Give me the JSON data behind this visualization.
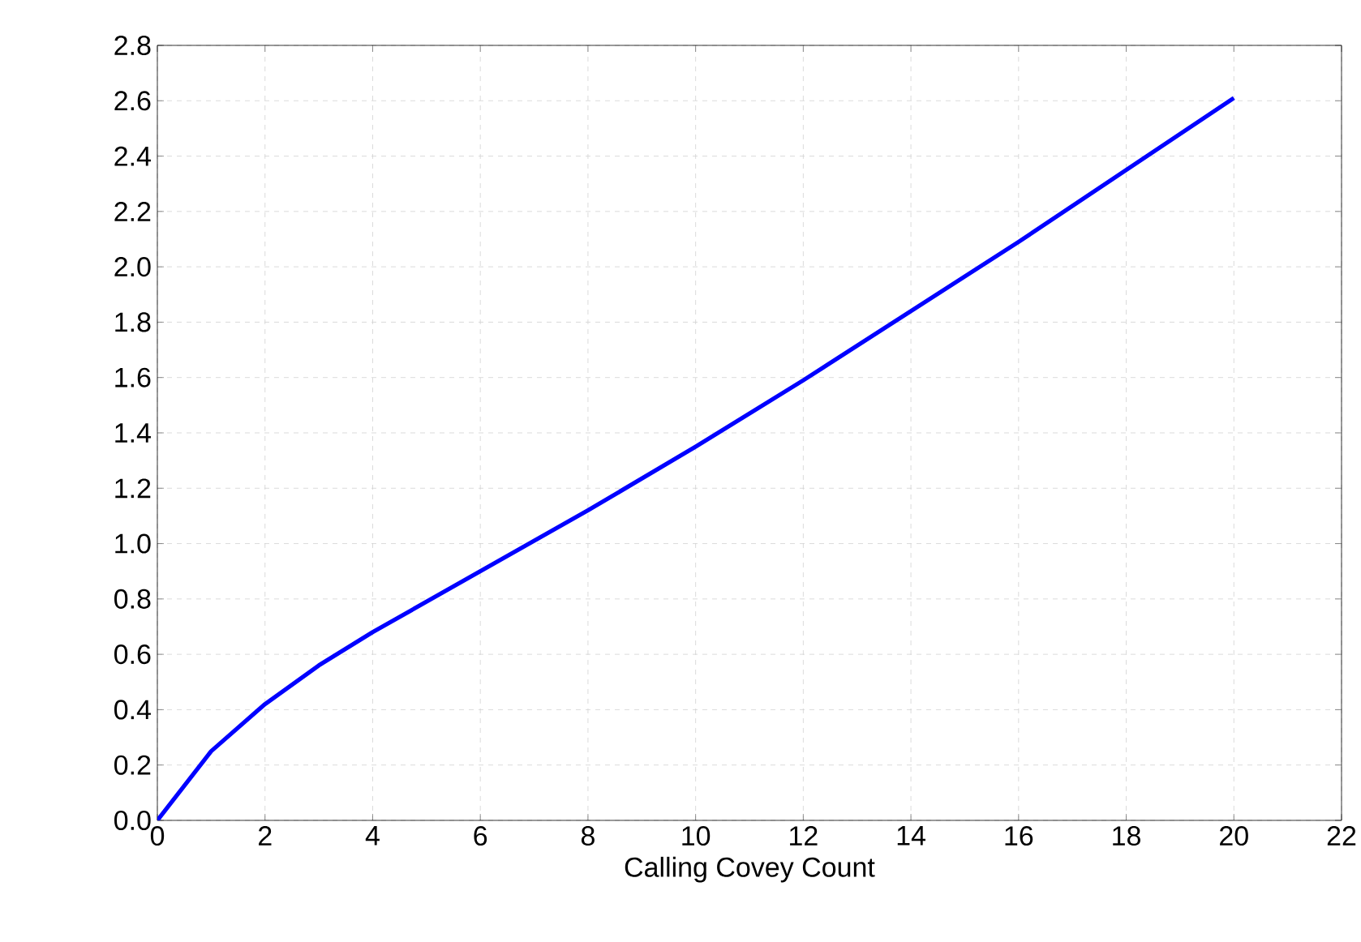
{
  "chart_data": {
    "type": "line",
    "xlabel": "Calling Covey Count",
    "x": [
      0,
      1,
      2,
      3,
      4,
      6,
      8,
      10,
      12,
      14,
      16,
      18,
      20
    ],
    "series": [
      {
        "color": "#0000ff",
        "values": [
          0,
          0.25,
          0.42,
          0.56,
          0.68,
          0.9,
          1.12,
          1.35,
          1.59,
          1.84,
          2.09,
          2.35,
          2.61
        ]
      }
    ],
    "xlim": [
      0,
      22
    ],
    "ylim": [
      0,
      2.8
    ],
    "xticks": [
      0,
      2,
      4,
      6,
      8,
      10,
      12,
      14,
      16,
      18,
      20,
      22
    ],
    "yticks": [
      {
        "value": 0,
        "label": "0.0"
      },
      0.2,
      0.4,
      0.6,
      0.8,
      {
        "value": 1,
        "label": "1.0"
      },
      1.2,
      1.4,
      1.6,
      1.8,
      {
        "value": 2,
        "label": "2.0"
      },
      2.2,
      2.4,
      2.6,
      2.8
    ],
    "grid": true,
    "marker": "none",
    "line_style": "solid"
  }
}
